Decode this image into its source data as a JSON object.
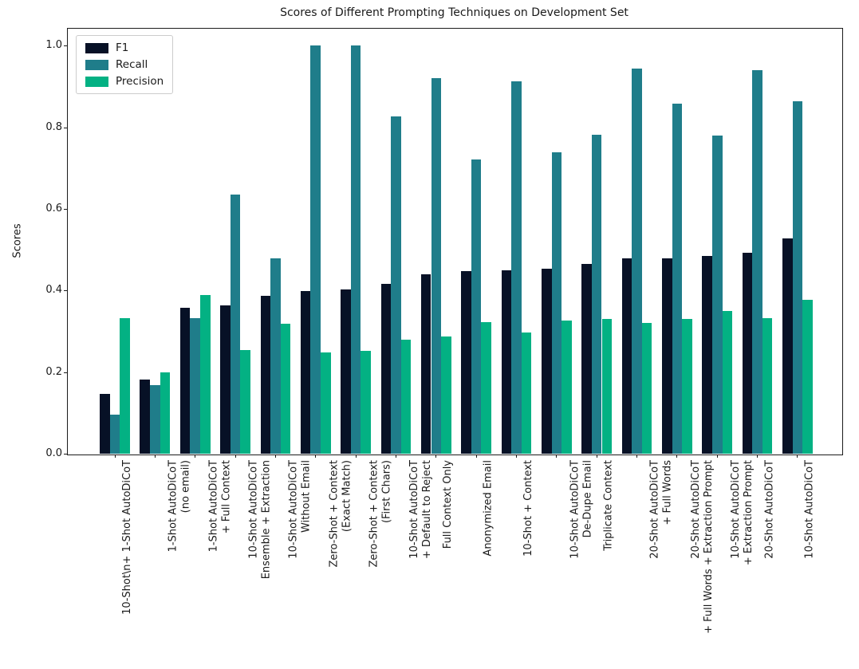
{
  "figure": {
    "title": "Scores of Different Prompting Techniques on Development Set",
    "ylabel": "Scores"
  },
  "chart_data": {
    "type": "bar",
    "title": "Scores of Different Prompting Techniques on Development Set",
    "xlabel": "",
    "ylabel": "Scores",
    "ylim": [
      0,
      1.045
    ],
    "yticks": [
      0.0,
      0.2,
      0.4,
      0.6,
      0.8,
      1.0
    ],
    "grid": false,
    "legend_position": "upper-left",
    "categories": [
      "10-Shot\\n+ 1-Shot AutoDiCoT",
      "1-Shot AutoDiCoT\n(no email)",
      "1-Shot AutoDiCoT\n+ Full Context",
      "10-Shot AutoDiCoT\nEnsemble + Extraction",
      "10-Shot AutoDiCoT\nWithout Email",
      "Zero-Shot + Context\n(Exact Match)",
      "Zero-Shot + Context\n(First Chars)",
      "10-Shot AutoDiCoT\n+ Default to Reject",
      "Full Context Only",
      "Anonymized Email",
      "10-Shot + Context",
      "10-Shot AutoDiCoT\nDe-Dupe Email",
      "Triplicate Context",
      "20-Shot AutoDiCoT\n+ Full Words",
      "20-Shot AutoDiCoT\n+ Full Words + Extraction Prompt",
      "10-Shot AutoDiCoT\n+ Extraction Prompt",
      "20-Shot AutoDiCoT",
      "10-Shot AutoDiCoT"
    ],
    "series": [
      {
        "name": "F1",
        "color": "#071126",
        "values": [
          0.147,
          0.181,
          0.357,
          0.364,
          0.387,
          0.398,
          0.403,
          0.416,
          0.44,
          0.447,
          0.45,
          0.453,
          0.466,
          0.478,
          0.479,
          0.485,
          0.492,
          0.528
        ]
      },
      {
        "name": "Recall",
        "color": "#1f7d8a",
        "values": [
          0.095,
          0.168,
          0.332,
          0.636,
          0.478,
          1.0,
          1.0,
          0.826,
          0.921,
          0.721,
          0.912,
          0.738,
          0.781,
          0.943,
          0.857,
          0.779,
          0.94,
          0.863
        ]
      },
      {
        "name": "Precision",
        "color": "#03b183",
        "values": [
          0.332,
          0.199,
          0.388,
          0.254,
          0.319,
          0.249,
          0.253,
          0.279,
          0.287,
          0.323,
          0.298,
          0.326,
          0.331,
          0.32,
          0.331,
          0.35,
          0.332,
          0.378
        ]
      }
    ]
  }
}
